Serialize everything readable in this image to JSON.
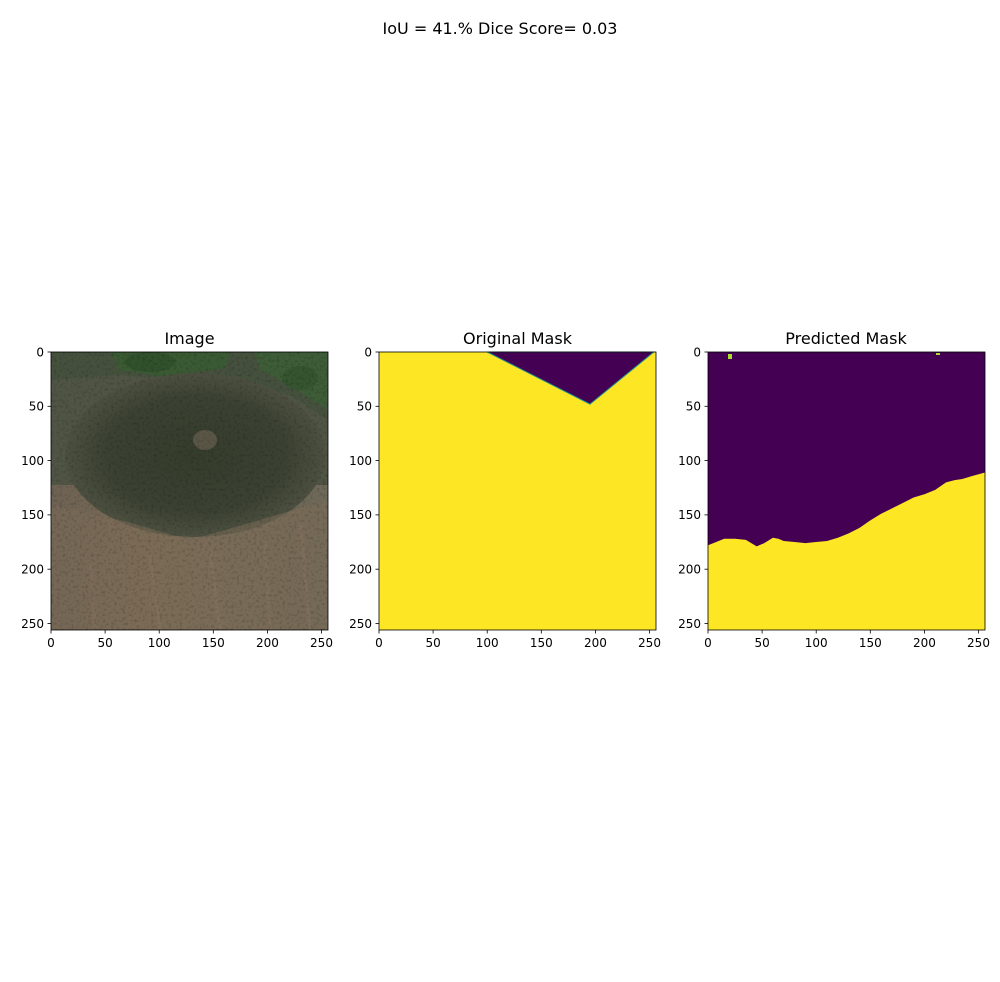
{
  "figure": {
    "suptitle": "IoU = 41.% Dice Score= 0.03"
  },
  "colors": {
    "mask_low": "#440154",
    "mask_high": "#fde725",
    "mask_edge": "#21918c",
    "speck": "#addc30"
  },
  "chart_data": [
    {
      "type": "heatmap",
      "title": "Image",
      "content": "satellite image",
      "xlim": [
        0,
        256
      ],
      "ylim": [
        256,
        0
      ],
      "xticks": [
        "0",
        "50",
        "100",
        "150",
        "200",
        "250"
      ],
      "yticks": [
        "0",
        "50",
        "100",
        "150",
        "200",
        "250"
      ]
    },
    {
      "type": "heatmap",
      "title": "Original Mask",
      "xlim": [
        0,
        256
      ],
      "ylim": [
        256,
        0
      ],
      "xticks": [
        "0",
        "50",
        "100",
        "150",
        "200",
        "250"
      ],
      "yticks": [
        "0",
        "50",
        "100",
        "150",
        "200",
        "250"
      ],
      "region_value_0_polygon": [
        [
          100,
          0
        ],
        [
          254,
          0
        ],
        [
          195,
          48
        ]
      ]
    },
    {
      "type": "heatmap",
      "title": "Predicted Mask",
      "xlim": [
        0,
        256
      ],
      "ylim": [
        256,
        0
      ],
      "xticks": [
        "0",
        "50",
        "100",
        "150",
        "200",
        "250"
      ],
      "yticks": [
        "0",
        "50",
        "100",
        "150",
        "200",
        "250"
      ],
      "boundary": [
        [
          0,
          178
        ],
        [
          5,
          176
        ],
        [
          15,
          172
        ],
        [
          25,
          172
        ],
        [
          35,
          173
        ],
        [
          45,
          179
        ],
        [
          52,
          176
        ],
        [
          60,
          171
        ],
        [
          65,
          172
        ],
        [
          70,
          174
        ],
        [
          80,
          175
        ],
        [
          90,
          176
        ],
        [
          100,
          175
        ],
        [
          110,
          174
        ],
        [
          120,
          171
        ],
        [
          130,
          167
        ],
        [
          140,
          162
        ],
        [
          150,
          155
        ],
        [
          160,
          149
        ],
        [
          170,
          144
        ],
        [
          180,
          139
        ],
        [
          190,
          134
        ],
        [
          200,
          131
        ],
        [
          210,
          127
        ],
        [
          220,
          120
        ],
        [
          228,
          118
        ],
        [
          235,
          117
        ],
        [
          245,
          114
        ],
        [
          256,
          111
        ]
      ]
    }
  ]
}
